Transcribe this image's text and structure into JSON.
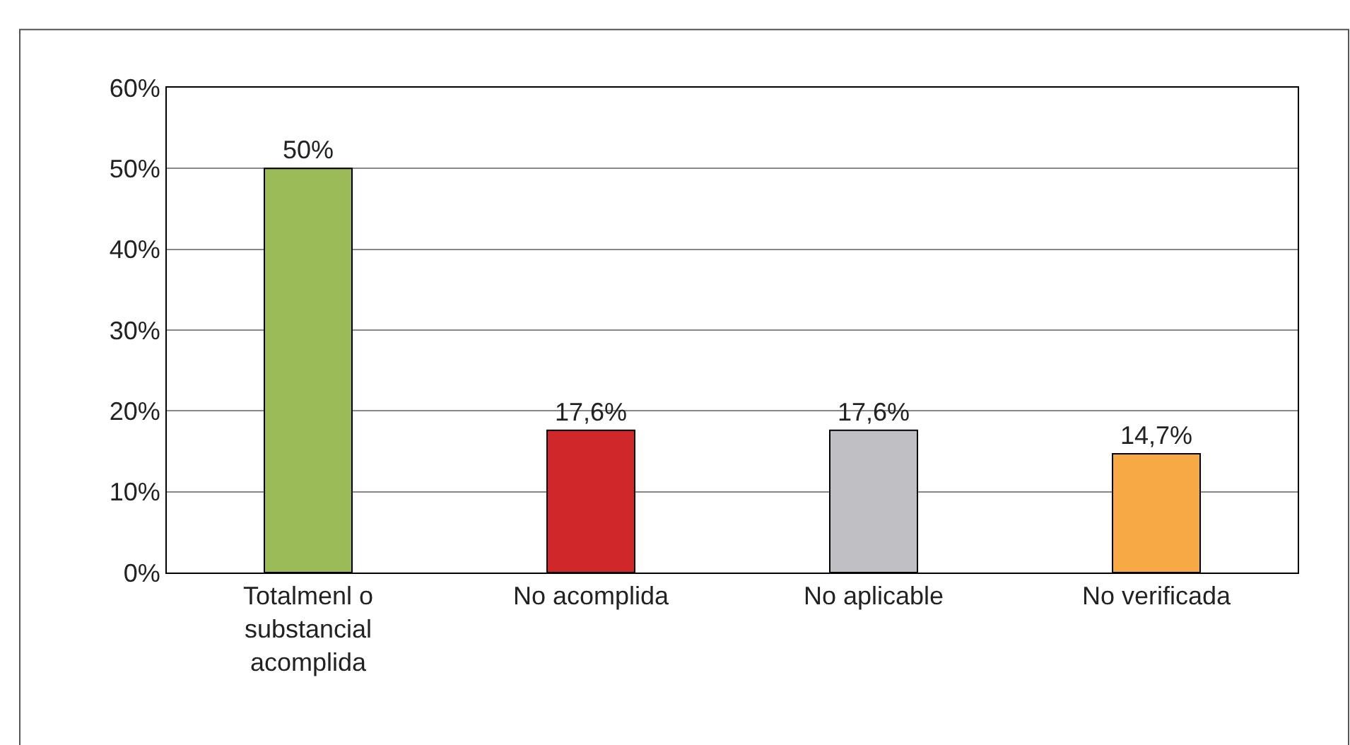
{
  "chart_data": {
    "type": "bar",
    "categories": [
      "Totalmenl o substancial acomplida",
      "No acomplida",
      "No aplicable",
      "No verificada"
    ],
    "values": [
      50,
      17.6,
      17.6,
      14.7
    ],
    "colors": [
      "#9bbb59",
      "#d0282a",
      "#c0c0c4",
      "#f7a945"
    ],
    "value_labels": [
      "50%",
      "17,6%",
      "17,6%",
      "14,7%"
    ],
    "ylim": [
      0,
      60
    ],
    "yticks": [
      {
        "value": 0,
        "label": "0%"
      },
      {
        "value": 10,
        "label": "10%"
      },
      {
        "value": 20,
        "label": "20%"
      },
      {
        "value": 30,
        "label": "30%"
      },
      {
        "value": 40,
        "label": "40%"
      },
      {
        "value": 50,
        "label": "50%"
      },
      {
        "value": 60,
        "label": "60%"
      }
    ],
    "grid": "y"
  }
}
